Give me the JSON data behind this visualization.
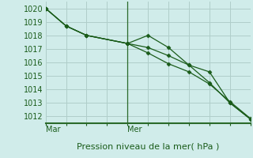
{
  "title": "Pression niveau de la mer( hPa )",
  "ylim": [
    1011.5,
    1020.5
  ],
  "yticks": [
    1012,
    1013,
    1014,
    1015,
    1016,
    1017,
    1018,
    1019,
    1020
  ],
  "xlim": [
    0,
    10
  ],
  "xticks": [
    0,
    1,
    2,
    3,
    4,
    5,
    6,
    7,
    8,
    9,
    10
  ],
  "xticklabels_pos": [
    0,
    4
  ],
  "xticklabels": [
    "Mar",
    "Mer"
  ],
  "line1_x": [
    0,
    1,
    2,
    4,
    5,
    6,
    7,
    8,
    9,
    10
  ],
  "line1_y": [
    1020.0,
    1018.7,
    1018.0,
    1017.4,
    1018.0,
    1017.1,
    1015.8,
    1015.3,
    1013.0,
    1011.8
  ],
  "line2_x": [
    0,
    1,
    2,
    4,
    5,
    6,
    7,
    8,
    9,
    10
  ],
  "line2_y": [
    1020.0,
    1018.7,
    1018.0,
    1017.4,
    1017.1,
    1016.5,
    1015.8,
    1014.5,
    1013.0,
    1011.8
  ],
  "line3_x": [
    0,
    1,
    2,
    4,
    5,
    6,
    7,
    8,
    9,
    10
  ],
  "line3_y": [
    1020.0,
    1018.7,
    1018.0,
    1017.4,
    1016.7,
    1015.9,
    1015.3,
    1014.4,
    1013.1,
    1011.85
  ],
  "line_color": "#1a5c1a",
  "marker_color": "#1a5c1a",
  "bg_color": "#d0ecea",
  "grid_color": "#b0ceca",
  "axis_bottom_color": "#2a6a2a",
  "vline_x": [
    4
  ],
  "vline_color": "#2a6a2a",
  "font_color": "#1a5c1a",
  "title_fontsize": 8,
  "tick_fontsize": 7
}
